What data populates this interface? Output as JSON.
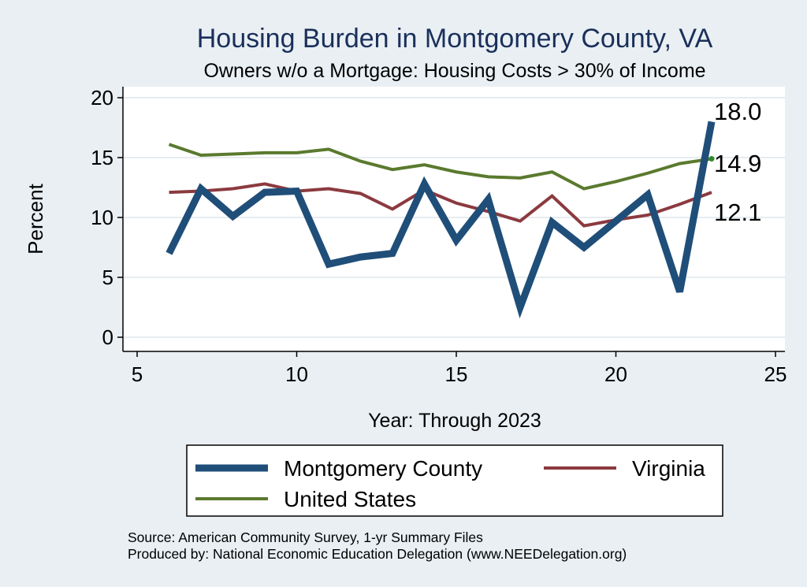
{
  "chart_data": {
    "type": "line",
    "title": "Housing Burden in Montgomery County, VA",
    "subtitle": "Owners w/o a Mortgage: Housing Costs > 30% of Income",
    "xlabel": "Year: Through 2023",
    "ylabel": "Percent",
    "xlim": [
      5,
      25
    ],
    "ylim": [
      0,
      20
    ],
    "x_ticks": [
      5,
      10,
      15,
      20,
      25
    ],
    "y_ticks": [
      0,
      5,
      10,
      15,
      20
    ],
    "grid": true,
    "legend_position": "bottom",
    "x": [
      6,
      7,
      8,
      9,
      10,
      11,
      12,
      13,
      14,
      15,
      16,
      17,
      18,
      19,
      20,
      21,
      22,
      23
    ],
    "series": [
      {
        "name": "Montgomery County",
        "color": "#1f4e79",
        "values": [
          7.0,
          12.4,
          10.1,
          12.1,
          12.2,
          6.1,
          6.7,
          7.0,
          12.8,
          8.1,
          11.5,
          2.5,
          9.6,
          7.5,
          9.7,
          11.9,
          3.8,
          18.0
        ],
        "end_label": "18.0"
      },
      {
        "name": "Virginia",
        "color": "#8b3a3f",
        "values": [
          12.1,
          12.2,
          12.4,
          12.8,
          12.2,
          12.4,
          12.0,
          10.7,
          12.3,
          11.2,
          10.5,
          9.7,
          11.8,
          9.3,
          9.8,
          10.2,
          11.1,
          12.1
        ],
        "end_label": "12.1"
      },
      {
        "name": "United States",
        "color": "#5a7a2e",
        "values": [
          16.1,
          15.2,
          15.3,
          15.4,
          15.4,
          15.7,
          14.7,
          14.0,
          14.4,
          13.8,
          13.4,
          13.3,
          13.8,
          12.4,
          13.0,
          13.7,
          14.5,
          14.9
        ],
        "end_label": "14.9"
      }
    ]
  },
  "footer": {
    "source": "Source: American Community Survey, 1-yr Summary Files",
    "produced_by": "Produced by: National Economic Education Delegation (www.NEEDelegation.org)"
  }
}
